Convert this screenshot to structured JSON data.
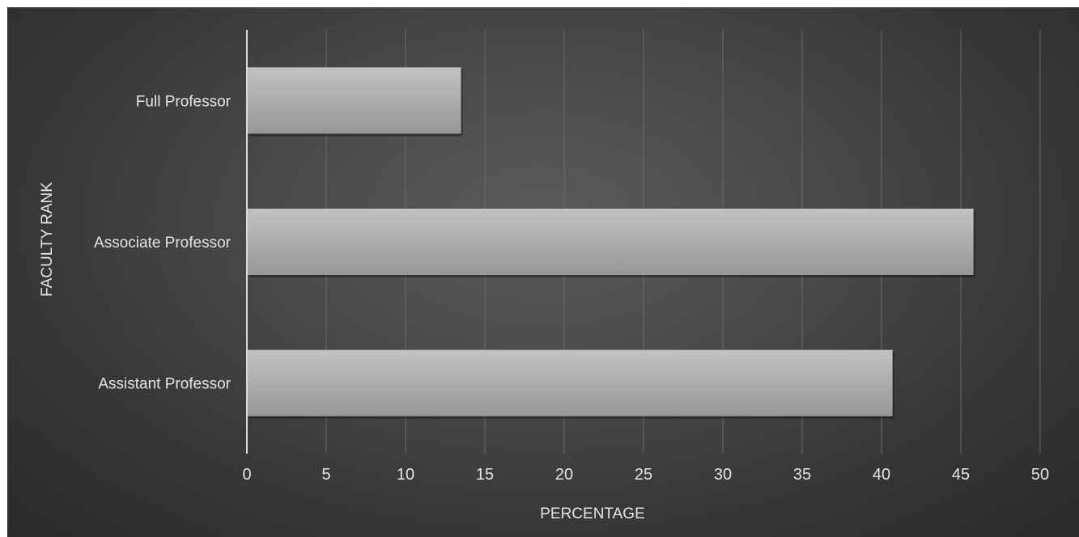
{
  "chart_data": {
    "type": "bar",
    "orientation": "horizontal",
    "categories": [
      "Full Professor",
      "Associate Professor",
      "Assistant Professor"
    ],
    "values": [
      13.5,
      45.8,
      40.7
    ],
    "xlabel": "PERCENTAGE",
    "ylabel": "FACULTY RANK",
    "xlim": [
      0,
      50
    ],
    "xticks": [
      "0",
      "5",
      "10",
      "15",
      "20",
      "25",
      "30",
      "35",
      "40",
      "45",
      "50"
    ],
    "grid": "vertical",
    "colors": {
      "bar_light": "#c2c2c2",
      "bar_dark": "#979797",
      "grid": "#6a6a6a",
      "axis": "#d9d9d9",
      "text": "#e4e4e4"
    }
  }
}
